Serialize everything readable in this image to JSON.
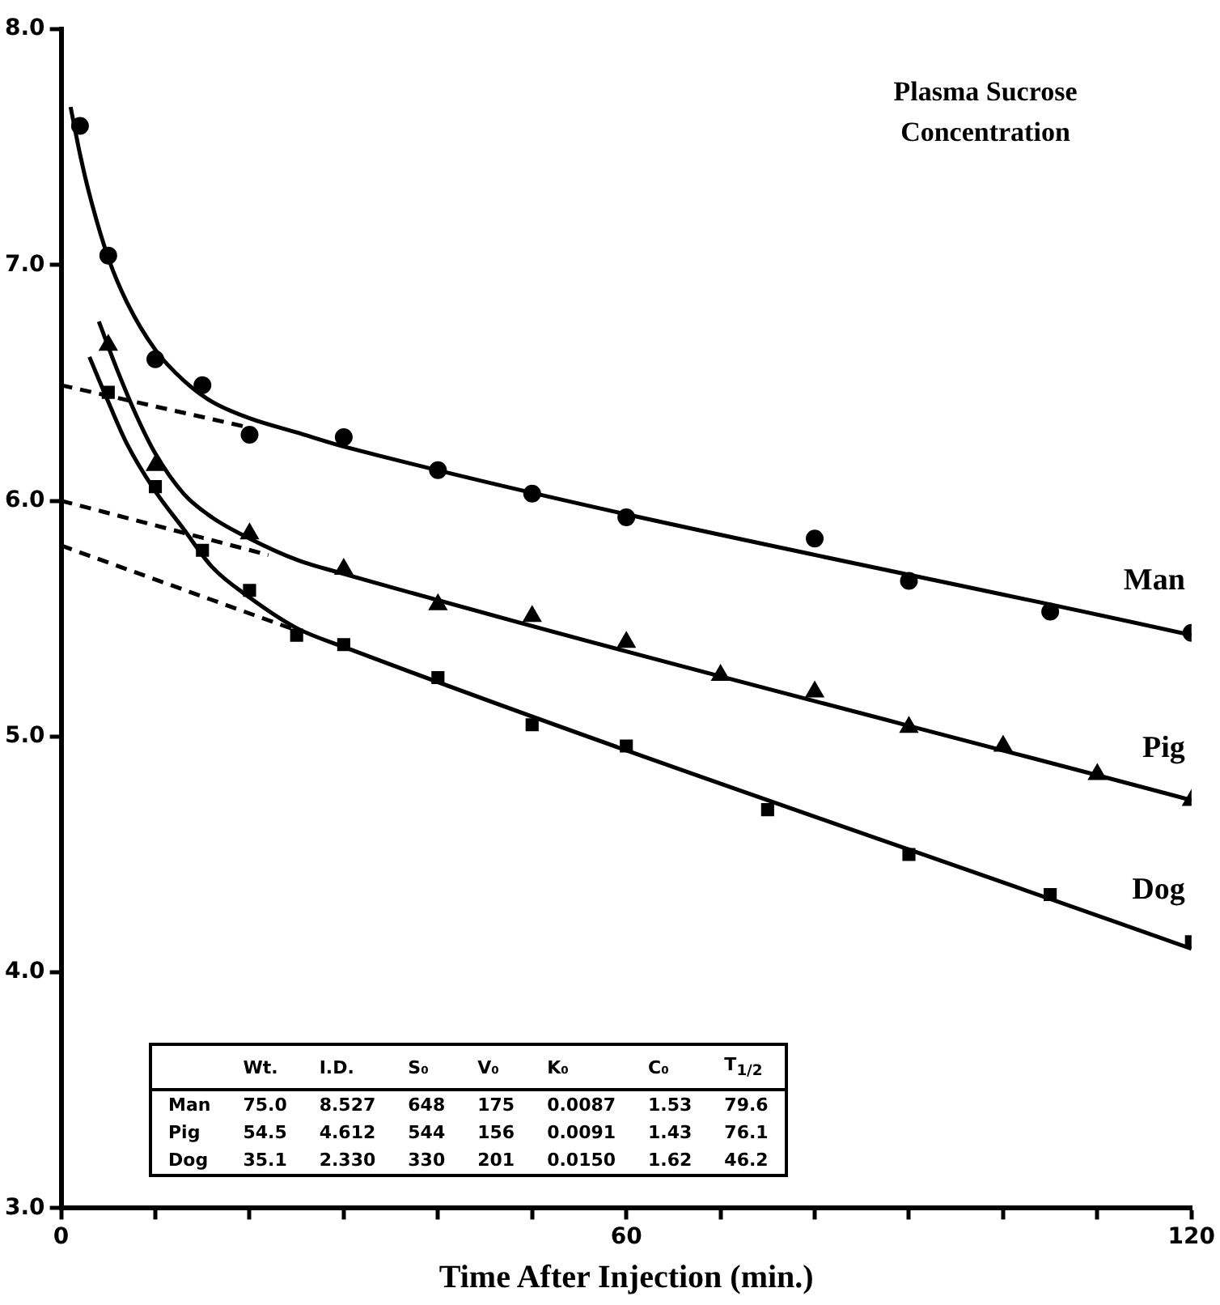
{
  "chart_data": {
    "type": "scatter",
    "title": "Plasma Sucrose Concentration",
    "xlabel": "Time After Injection (min.)",
    "xlim": [
      0,
      120
    ],
    "ylim": [
      3,
      8
    ],
    "xticks": [
      0,
      {
        "value": 10,
        "label": null
      },
      {
        "value": 20,
        "label": null
      },
      {
        "value": 30,
        "label": null
      },
      {
        "value": 40,
        "label": null
      },
      {
        "value": 50,
        "label": null
      },
      60,
      {
        "value": 70,
        "label": null
      },
      {
        "value": 80,
        "label": null
      },
      {
        "value": 90,
        "label": null
      },
      {
        "value": 100,
        "label": null
      },
      {
        "value": 110,
        "label": null
      },
      120
    ],
    "yticks": [
      {
        "value": 3,
        "label": "3.0"
      },
      {
        "value": 4,
        "label": "4.0"
      },
      {
        "value": 5,
        "label": "5.0"
      },
      {
        "value": 6,
        "label": "6.0"
      },
      {
        "value": 7,
        "label": "7.0"
      },
      {
        "value": 8,
        "label": "8.0"
      }
    ],
    "grid": false,
    "legend": false,
    "series": [
      {
        "name": "Man",
        "type": "scatter",
        "marker": "circle",
        "color": "#000000",
        "x": [
          2,
          5,
          10,
          15,
          20,
          30,
          40,
          50,
          60,
          80,
          90,
          105,
          120
        ],
        "values": [
          7.59,
          7.04,
          6.6,
          6.49,
          6.28,
          6.27,
          6.13,
          6.03,
          5.93,
          5.84,
          5.66,
          5.53,
          5.44
        ]
      },
      {
        "name": "Pig",
        "type": "scatter",
        "marker": "triangle",
        "color": "#000000",
        "x": [
          5,
          10,
          20,
          30,
          40,
          50,
          60,
          70,
          80,
          90,
          100,
          110,
          120
        ],
        "values": [
          6.66,
          6.15,
          5.86,
          5.71,
          5.56,
          5.51,
          5.4,
          5.26,
          5.19,
          5.04,
          4.96,
          4.84,
          4.73
        ]
      },
      {
        "name": "Dog",
        "type": "scatter",
        "marker": "square",
        "color": "#000000",
        "x": [
          5,
          10,
          15,
          20,
          25,
          30,
          40,
          50,
          60,
          75,
          90,
          105,
          120
        ],
        "values": [
          6.46,
          6.06,
          5.79,
          5.62,
          5.43,
          5.39,
          5.25,
          5.05,
          4.96,
          4.69,
          4.5,
          4.33,
          4.13
        ]
      },
      {
        "type": "line",
        "line_style": "solid",
        "color": "#000000",
        "x": [
          1,
          2,
          3,
          5,
          7,
          10,
          13,
          16,
          20,
          25,
          30,
          120
        ],
        "values": [
          7.67,
          7.47,
          7.3,
          7.03,
          6.84,
          6.64,
          6.51,
          6.42,
          6.35,
          6.29,
          6.23,
          5.43
        ]
      },
      {
        "type": "line",
        "line_style": "solid",
        "color": "#000000",
        "x": [
          4,
          6,
          8,
          10,
          13,
          16,
          20,
          25,
          30,
          120
        ],
        "values": [
          6.76,
          6.55,
          6.36,
          6.2,
          6.03,
          5.93,
          5.84,
          5.75,
          5.69,
          4.73
        ]
      },
      {
        "type": "line",
        "line_style": "solid",
        "color": "#000000",
        "x": [
          3,
          5,
          7,
          10,
          13,
          16,
          20,
          25,
          30,
          120
        ],
        "values": [
          6.61,
          6.42,
          6.24,
          6.04,
          5.88,
          5.72,
          5.59,
          5.46,
          5.38,
          4.1
        ]
      },
      {
        "type": "line",
        "line_style": "dashed",
        "color": "#000000",
        "x": [
          0,
          20
        ],
        "values": [
          6.49,
          6.31
        ]
      },
      {
        "type": "line",
        "line_style": "dashed",
        "color": "#000000",
        "x": [
          0,
          22
        ],
        "values": [
          6.0,
          5.77
        ]
      },
      {
        "type": "line",
        "line_style": "dashed",
        "color": "#000000",
        "x": [
          0,
          25
        ],
        "values": [
          5.81,
          5.45
        ]
      }
    ],
    "annotations": [
      "Wt.",
      "I.D.",
      "S₀",
      "V₀",
      "K₀",
      "C₀",
      "T$_{1/2}$",
      "Man",
      "75.0",
      "8.527",
      "648",
      "175",
      "0.0087",
      "1.53",
      "79.6",
      "Pig",
      "54.5",
      "4.612",
      "544",
      "156",
      "0.0091",
      "1.43",
      "76.1",
      "Dog",
      "35.1",
      "2.330",
      "330",
      "201",
      "0.0150",
      "1.62",
      "46.2"
    ]
  }
}
